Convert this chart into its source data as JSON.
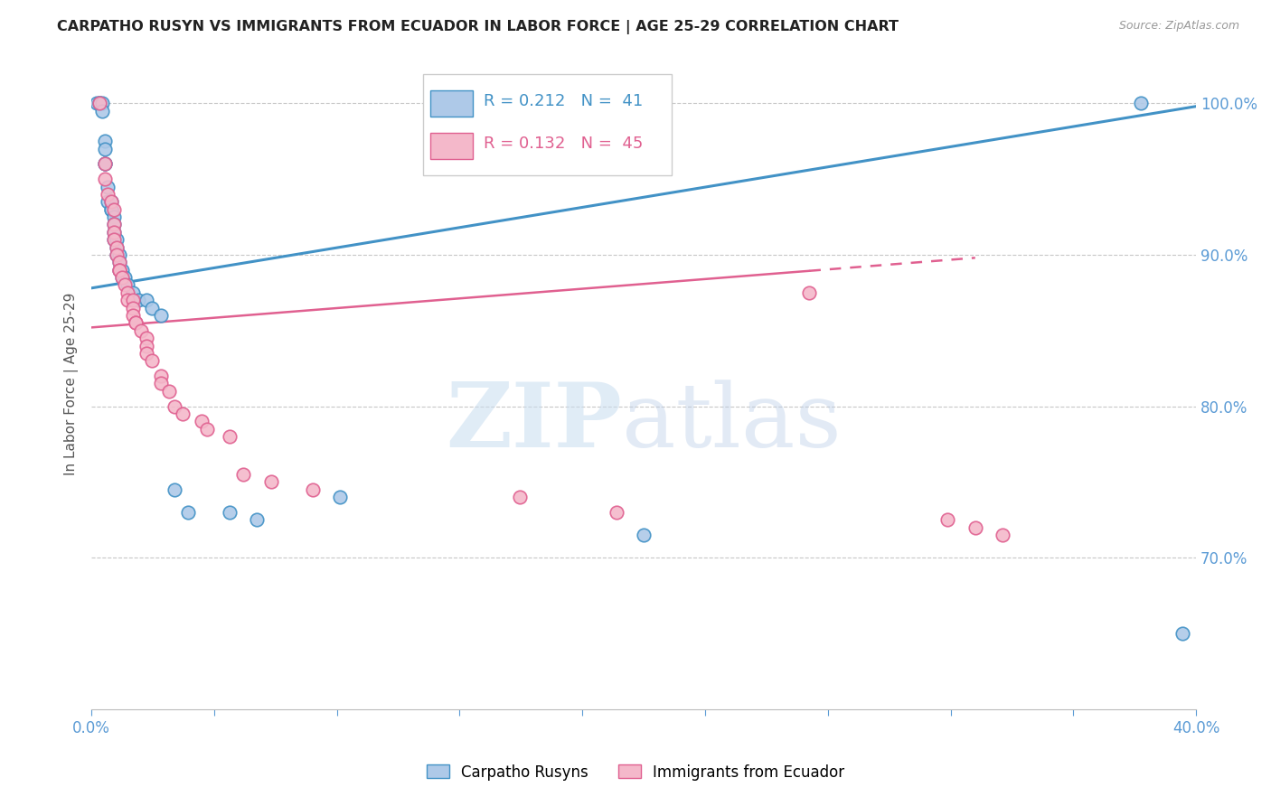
{
  "title": "CARPATHO RUSYN VS IMMIGRANTS FROM ECUADOR IN LABOR FORCE | AGE 25-29 CORRELATION CHART",
  "source": "Source: ZipAtlas.com",
  "ylabel": "In Labor Force | Age 25-29",
  "x_min": 0.0,
  "x_max": 0.4,
  "y_min": 0.6,
  "y_max": 1.03,
  "y_ticks": [
    0.7,
    0.8,
    0.9,
    1.0
  ],
  "y_tick_labels": [
    "70.0%",
    "80.0%",
    "90.0%",
    "100.0%"
  ],
  "blue_R": 0.212,
  "blue_N": 41,
  "pink_R": 0.132,
  "pink_N": 45,
  "blue_color": "#aec9e8",
  "pink_color": "#f4b8ca",
  "trend_blue": "#4292c6",
  "trend_pink": "#e06090",
  "background_color": "#ffffff",
  "blue_scatter_x": [
    0.002,
    0.003,
    0.003,
    0.004,
    0.004,
    0.005,
    0.005,
    0.005,
    0.005,
    0.006,
    0.006,
    0.007,
    0.007,
    0.007,
    0.008,
    0.008,
    0.008,
    0.008,
    0.009,
    0.009,
    0.009,
    0.01,
    0.01,
    0.01,
    0.011,
    0.011,
    0.012,
    0.013,
    0.015,
    0.017,
    0.02,
    0.022,
    0.025,
    0.03,
    0.035,
    0.05,
    0.06,
    0.09,
    0.2,
    0.38,
    0.395
  ],
  "blue_scatter_y": [
    1.0,
    1.0,
    1.0,
    1.0,
    0.995,
    0.975,
    0.97,
    0.96,
    0.96,
    0.945,
    0.935,
    0.935,
    0.93,
    0.93,
    0.925,
    0.92,
    0.915,
    0.91,
    0.91,
    0.905,
    0.9,
    0.9,
    0.895,
    0.89,
    0.89,
    0.885,
    0.885,
    0.88,
    0.875,
    0.87,
    0.87,
    0.865,
    0.86,
    0.745,
    0.73,
    0.73,
    0.725,
    0.74,
    0.715,
    1.0,
    0.65
  ],
  "pink_scatter_x": [
    0.003,
    0.005,
    0.005,
    0.006,
    0.007,
    0.008,
    0.008,
    0.008,
    0.008,
    0.009,
    0.009,
    0.01,
    0.01,
    0.01,
    0.011,
    0.012,
    0.013,
    0.013,
    0.015,
    0.015,
    0.015,
    0.016,
    0.016,
    0.018,
    0.02,
    0.02,
    0.02,
    0.022,
    0.025,
    0.025,
    0.028,
    0.03,
    0.033,
    0.04,
    0.042,
    0.05,
    0.055,
    0.065,
    0.08,
    0.155,
    0.19,
    0.26,
    0.31,
    0.32,
    0.33
  ],
  "pink_scatter_y": [
    1.0,
    0.96,
    0.95,
    0.94,
    0.935,
    0.93,
    0.92,
    0.915,
    0.91,
    0.905,
    0.9,
    0.895,
    0.89,
    0.89,
    0.885,
    0.88,
    0.875,
    0.87,
    0.87,
    0.865,
    0.86,
    0.855,
    0.855,
    0.85,
    0.845,
    0.84,
    0.835,
    0.83,
    0.82,
    0.815,
    0.81,
    0.8,
    0.795,
    0.79,
    0.785,
    0.78,
    0.755,
    0.75,
    0.745,
    0.74,
    0.73,
    0.875,
    0.725,
    0.72,
    0.715
  ],
  "blue_trend_x": [
    0.0,
    0.4
  ],
  "blue_trend_y": [
    0.878,
    0.998
  ],
  "pink_trend_x": [
    0.0,
    0.32
  ],
  "pink_trend_solid_end": 0.26,
  "pink_trend_y": [
    0.852,
    0.898
  ],
  "legend_blue_label": "Carpatho Rusyns",
  "legend_pink_label": "Immigrants from Ecuador",
  "axis_color": "#5b9bd5",
  "tick_color": "#5b9bd5",
  "grid_color": "#c8c8c8"
}
